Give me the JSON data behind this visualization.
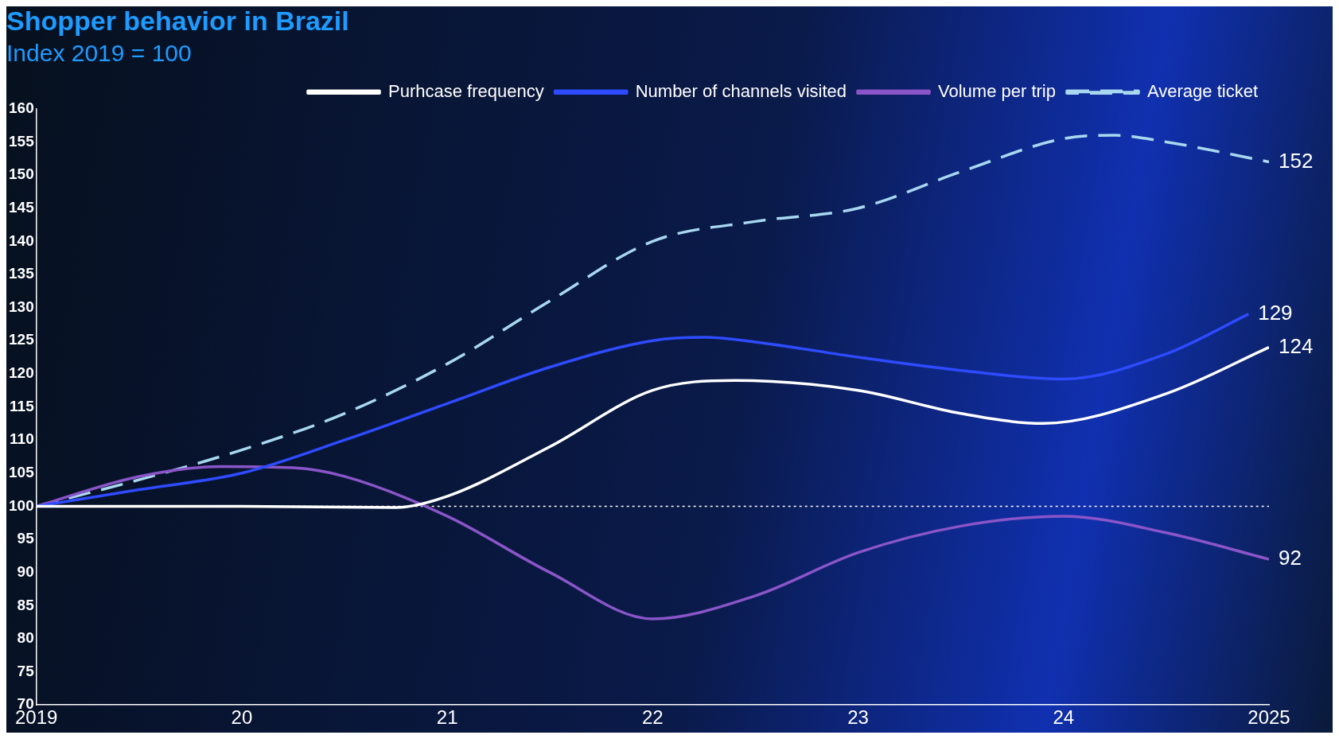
{
  "chart_data": {
    "type": "line",
    "title": "Shopper behavior in Brazil",
    "subtitle": "Index 2019 = 100",
    "xlim": [
      2019,
      2025
    ],
    "xticks": [
      2019,
      {
        "value": 2020,
        "label": "20"
      },
      {
        "value": 2021,
        "label": "21"
      },
      {
        "value": 2022,
        "label": "22"
      },
      {
        "value": 2023,
        "label": "23"
      },
      {
        "value": 2024,
        "label": "24"
      },
      2025
    ],
    "ylim": [
      70,
      160
    ],
    "yticks": [
      70,
      75,
      80,
      85,
      90,
      95,
      100,
      105,
      110,
      115,
      120,
      125,
      130,
      135,
      140,
      145,
      150,
      155,
      160
    ],
    "grid": false,
    "legend": "top right",
    "marker": "none",
    "ref_lines": [
      {
        "axis": "y",
        "value": 100,
        "label": null,
        "color": "#ffffff",
        "line_style": "dotted"
      }
    ],
    "series": [
      {
        "name": "Purhcase frequency",
        "color": "#ffffff",
        "line_style": "solid",
        "x": [
          2019,
          2020,
          2020.75,
          2021,
          2021.5,
          2022,
          2022.4,
          2023,
          2023.5,
          2023.9,
          2024.5,
          2025
        ],
        "values": [
          100,
          100,
          99.8,
          101.5,
          109,
          117.5,
          119,
          117.5,
          114,
          112.5,
          117,
          124
        ],
        "value_labels": [
          null,
          null,
          null,
          null,
          null,
          null,
          null,
          null,
          null,
          null,
          null,
          "124"
        ]
      },
      {
        "name": "Number of channels visited",
        "color": "#2e4bff",
        "line_style": "solid",
        "x": [
          2019,
          2019.5,
          2020,
          2020.5,
          2021,
          2021.5,
          2022,
          2022.25,
          2022.5,
          2023,
          2023.5,
          2024,
          2024.5,
          2024.9
        ],
        "values": [
          100,
          102.5,
          105,
          110,
          115.5,
          121,
          125,
          125.5,
          124.8,
          122.5,
          120.5,
          119.2,
          123,
          129
        ],
        "value_labels": [
          null,
          null,
          null,
          null,
          null,
          null,
          null,
          null,
          null,
          null,
          null,
          null,
          null,
          "129"
        ]
      },
      {
        "name": "Volume per trip",
        "color": "#8a55c8",
        "line_style": "solid",
        "x": [
          2019,
          2019.5,
          2019.9,
          2020.25,
          2020.5,
          2021,
          2021.5,
          2022,
          2022.5,
          2023,
          2023.5,
          2024,
          2024.5,
          2025
        ],
        "values": [
          100,
          104.5,
          106,
          105.8,
          104.5,
          98.5,
          90,
          83,
          86.5,
          93,
          97,
          98.5,
          96,
          92
        ],
        "value_labels": [
          null,
          null,
          null,
          null,
          null,
          null,
          null,
          null,
          null,
          null,
          null,
          null,
          null,
          "92"
        ]
      },
      {
        "name": "Average ticket",
        "color": "#a8d8f0",
        "line_style": "dashed",
        "x": [
          2019,
          2019.5,
          2020,
          2020.5,
          2021,
          2021.5,
          2022,
          2022.5,
          2023,
          2023.5,
          2024,
          2024.25,
          2024.5,
          2025
        ],
        "values": [
          100,
          104,
          108.5,
          114,
          121.5,
          131,
          140,
          143,
          145,
          150.5,
          155.5,
          156,
          155,
          152
        ],
        "value_labels": [
          null,
          null,
          null,
          null,
          null,
          null,
          null,
          null,
          null,
          null,
          null,
          null,
          null,
          "152"
        ]
      }
    ]
  }
}
